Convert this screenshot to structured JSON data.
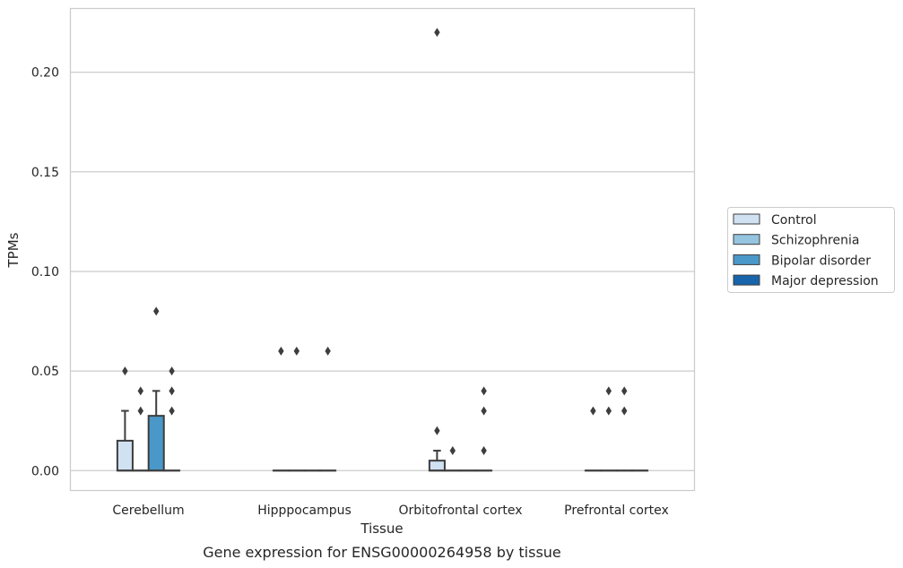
{
  "chart_data": {
    "type": "box",
    "caption": "Gene expression for ENSG00000264958 by tissue",
    "xlabel": "Tissue",
    "ylabel": "TPMs",
    "ylim": [
      -0.01,
      0.232
    ],
    "yticks": [
      0.0,
      0.05,
      0.1,
      0.15,
      0.2
    ],
    "ytick_labels": [
      "0.00",
      "0.05",
      "0.10",
      "0.15",
      "0.20"
    ],
    "grid": true,
    "legend_position": "right",
    "categories": [
      "Cerebellum",
      "Hipppocampus",
      "Orbitofrontal cortex",
      "Prefrontal cortex"
    ],
    "series": [
      {
        "name": "Control",
        "color": "#d0e1f2",
        "boxes": [
          {
            "q1": 0.0,
            "median": 0.0,
            "q3": 0.015,
            "whisker_low": 0.0,
            "whisker_high": 0.03,
            "outliers": [
              0.05
            ]
          },
          {
            "q1": 0.0,
            "median": 0.0,
            "q3": 0.0,
            "whisker_low": 0.0,
            "whisker_high": 0.0,
            "outliers": [
              0.06
            ]
          },
          {
            "q1": 0.0,
            "median": 0.0,
            "q3": 0.005,
            "whisker_low": 0.0,
            "whisker_high": 0.01,
            "outliers": [
              0.02,
              0.22
            ]
          },
          {
            "q1": 0.0,
            "median": 0.0,
            "q3": 0.0,
            "whisker_low": 0.0,
            "whisker_high": 0.0,
            "outliers": [
              0.03
            ]
          }
        ]
      },
      {
        "name": "Schizophrenia",
        "color": "#94c4df",
        "boxes": [
          {
            "q1": 0.0,
            "median": 0.0,
            "q3": 0.0,
            "whisker_low": 0.0,
            "whisker_high": 0.0,
            "outliers": [
              0.03,
              0.04
            ]
          },
          {
            "q1": 0.0,
            "median": 0.0,
            "q3": 0.0,
            "whisker_low": 0.0,
            "whisker_high": 0.0,
            "outliers": [
              0.06
            ]
          },
          {
            "q1": 0.0,
            "median": 0.0,
            "q3": 0.0,
            "whisker_low": 0.0,
            "whisker_high": 0.0,
            "outliers": [
              0.01
            ]
          },
          {
            "q1": 0.0,
            "median": 0.0,
            "q3": 0.0,
            "whisker_low": 0.0,
            "whisker_high": 0.0,
            "outliers": [
              0.03,
              0.04
            ]
          }
        ]
      },
      {
        "name": "Bipolar disorder",
        "color": "#4a98c9",
        "boxes": [
          {
            "q1": 0.0,
            "median": 0.0,
            "q3": 0.0275,
            "whisker_low": 0.0,
            "whisker_high": 0.04,
            "outliers": [
              0.08
            ]
          },
          {
            "q1": 0.0,
            "median": 0.0,
            "q3": 0.0,
            "whisker_low": 0.0,
            "whisker_high": 0.0,
            "outliers": []
          },
          {
            "q1": 0.0,
            "median": 0.0,
            "q3": 0.0,
            "whisker_low": 0.0,
            "whisker_high": 0.0,
            "outliers": []
          },
          {
            "q1": 0.0,
            "median": 0.0,
            "q3": 0.0,
            "whisker_low": 0.0,
            "whisker_high": 0.0,
            "outliers": [
              0.03,
              0.04
            ]
          }
        ]
      },
      {
        "name": "Major depression",
        "color": "#1764ab",
        "boxes": [
          {
            "q1": 0.0,
            "median": 0.0,
            "q3": 0.0,
            "whisker_low": 0.0,
            "whisker_high": 0.0,
            "outliers": [
              0.03,
              0.04,
              0.05
            ]
          },
          {
            "q1": 0.0,
            "median": 0.0,
            "q3": 0.0,
            "whisker_low": 0.0,
            "whisker_high": 0.0,
            "outliers": [
              0.06
            ]
          },
          {
            "q1": 0.0,
            "median": 0.0,
            "q3": 0.0,
            "whisker_low": 0.0,
            "whisker_high": 0.0,
            "outliers": [
              0.01,
              0.03,
              0.04
            ]
          },
          {
            "q1": 0.0,
            "median": 0.0,
            "q3": 0.0,
            "whisker_low": 0.0,
            "whisker_high": 0.0,
            "outliers": []
          }
        ]
      }
    ]
  }
}
